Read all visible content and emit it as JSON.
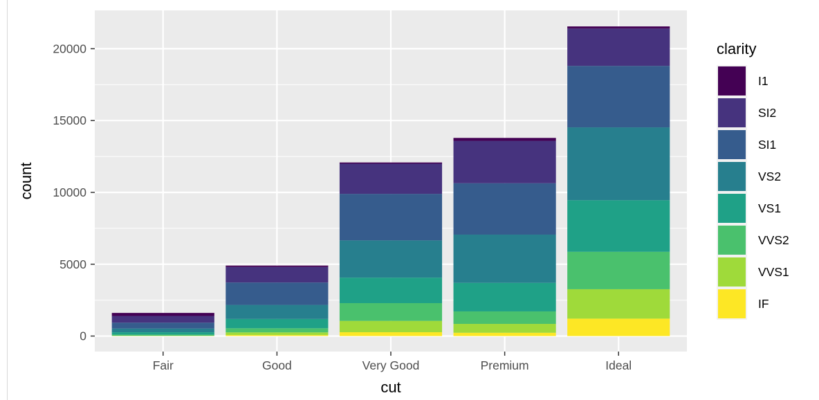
{
  "chart_data": {
    "type": "bar",
    "stacked": true,
    "xlabel": "cut",
    "ylabel": "count",
    "ylim": [
      -1079.5,
      22668.5
    ],
    "yticks": [
      0,
      5000,
      10000,
      15000,
      20000
    ],
    "ytick_labels": [
      "0",
      "5000",
      "10000",
      "15000",
      "20000"
    ],
    "categories": [
      "Fair",
      "Good",
      "Very Good",
      "Premium",
      "Ideal"
    ],
    "legend_title": "clarity",
    "legend_position": "right",
    "grid": true,
    "series": [
      {
        "name": "I1",
        "color": "#440154",
        "values": [
          210,
          96,
          84,
          205,
          146
        ]
      },
      {
        "name": "SI2",
        "color": "#46337E",
        "values": [
          466,
          1081,
          2100,
          2949,
          2598
        ]
      },
      {
        "name": "SI1",
        "color": "#365C8D",
        "values": [
          408,
          1560,
          3240,
          3575,
          4282
        ]
      },
      {
        "name": "VS2",
        "color": "#277F8E",
        "values": [
          261,
          978,
          2591,
          3357,
          5071
        ]
      },
      {
        "name": "VS1",
        "color": "#1FA187",
        "values": [
          170,
          648,
          1775,
          1989,
          3589
        ]
      },
      {
        "name": "VVS2",
        "color": "#4AC16D",
        "values": [
          69,
          286,
          1235,
          870,
          2606
        ]
      },
      {
        "name": "VVS1",
        "color": "#9FDA3A",
        "values": [
          17,
          186,
          789,
          616,
          2047
        ]
      },
      {
        "name": "IF",
        "color": "#FDE725",
        "values": [
          9,
          71,
          268,
          230,
          1212
        ]
      }
    ]
  }
}
